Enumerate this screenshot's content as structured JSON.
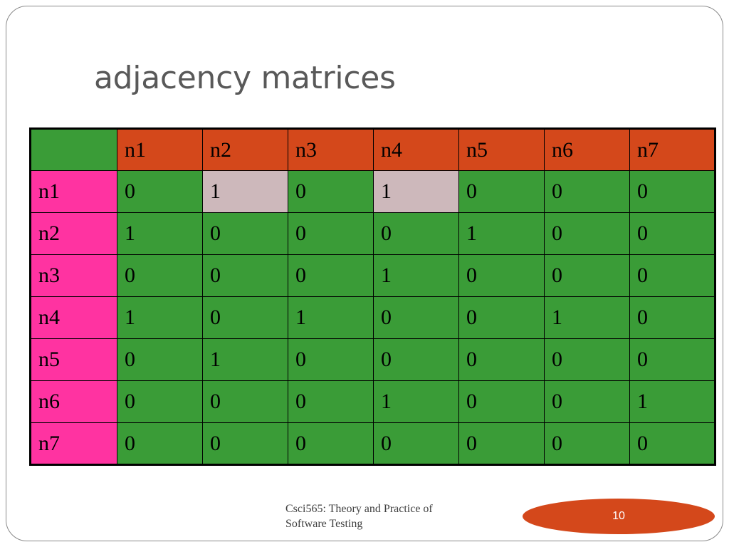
{
  "slide": {
    "title": "adjacency matrices",
    "footer_line1": "Csci565: Theory and Practice of",
    "footer_line2": "Software Testing",
    "page_number": "10"
  },
  "matrix": {
    "corner": "",
    "columns": [
      "n1",
      "n2",
      "n3",
      "n4",
      "n5",
      "n6",
      "n7"
    ],
    "rows": [
      {
        "label": "n1",
        "values": [
          "0",
          "1",
          "0",
          "1",
          "0",
          "0",
          "0"
        ],
        "highlight": [
          1,
          3
        ]
      },
      {
        "label": "n2",
        "values": [
          "1",
          "0",
          "0",
          "0",
          "1",
          "0",
          "0"
        ],
        "highlight": []
      },
      {
        "label": "n3",
        "values": [
          "0",
          "0",
          "0",
          "1",
          "0",
          "0",
          "0"
        ],
        "highlight": []
      },
      {
        "label": "n4",
        "values": [
          "1",
          "0",
          "1",
          "0",
          "0",
          "1",
          "0"
        ],
        "highlight": []
      },
      {
        "label": "n5",
        "values": [
          "0",
          "1",
          "0",
          "0",
          "0",
          "0",
          "0"
        ],
        "highlight": []
      },
      {
        "label": "n6",
        "values": [
          "0",
          "0",
          "0",
          "1",
          "0",
          "0",
          "1"
        ],
        "highlight": []
      },
      {
        "label": "n7",
        "values": [
          "0",
          "0",
          "0",
          "0",
          "0",
          "0",
          "0"
        ],
        "highlight": []
      }
    ]
  },
  "colors": {
    "header": "#d4481b",
    "row_header": "#ff33a1",
    "cell": "#3a9c37",
    "highlight_cell": "#cdb8bb"
  }
}
